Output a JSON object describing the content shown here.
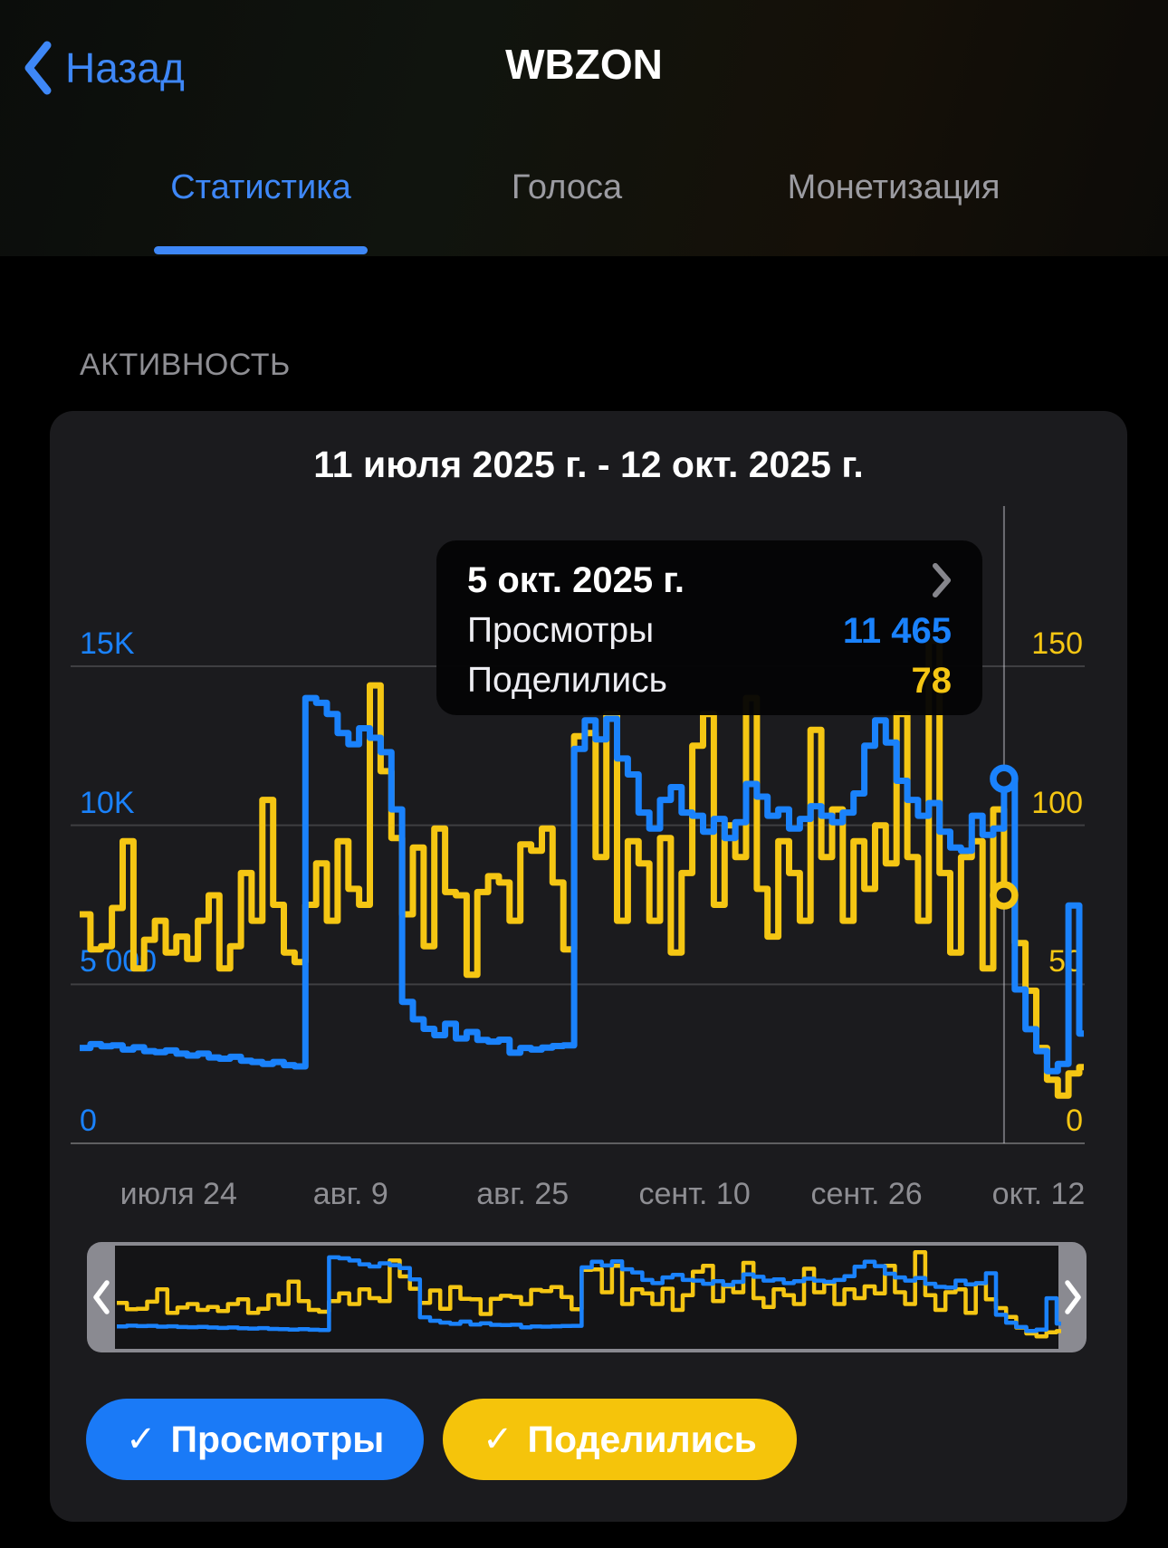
{
  "nav": {
    "back_label": "Назад",
    "title": "WBZON"
  },
  "tabs": [
    {
      "label": "Статистика",
      "active": true
    },
    {
      "label": "Голоса",
      "active": false
    },
    {
      "label": "Монетизация",
      "active": false
    }
  ],
  "section_title": "АКТИВНОСТЬ",
  "card": {
    "date_range_title": "11 июля 2025 г. - 12 окт. 2025 г."
  },
  "tooltip": {
    "date": "5 окт. 2025 г.",
    "views_label": "Просмотры",
    "views_value": "11 465",
    "shares_label": "Поделились",
    "shares_value": "78"
  },
  "legend": [
    {
      "check_icon": "✓",
      "label": "Просмотры",
      "color": "#1a7af7"
    },
    {
      "check_icon": "✓",
      "label": "Поделились",
      "color": "#f5c40b"
    }
  ],
  "colors": {
    "views_line": "#1a82fc",
    "shares_line": "#f5c613",
    "grid": "rgba(255,255,255,0.16)",
    "axis_base": "rgba(255,255,255,0.3)",
    "selection": "rgba(235,235,245,0.4)",
    "card_bg": "#1b1b1e"
  },
  "chart_data": {
    "type": "line",
    "step": true,
    "title": "11 июля 2025 г. - 12 окт. 2025 г.",
    "x_start": "11 июля 2025",
    "x_end": "12 окт. 2025",
    "x_ticks": [
      {
        "label": "июля 24",
        "day": 13
      },
      {
        "label": "авг. 9",
        "day": 29
      },
      {
        "label": "авг. 25",
        "day": 45
      },
      {
        "label": "сент. 10",
        "day": 61
      },
      {
        "label": "сент. 26",
        "day": 77
      },
      {
        "label": "окт. 12",
        "day": 93
      }
    ],
    "y_left": {
      "ticks": [
        "0",
        "5 000",
        "10K",
        "15K"
      ],
      "max": 15000
    },
    "y_right": {
      "ticks": [
        "0",
        "50",
        "100",
        "150"
      ],
      "max": 150
    },
    "selected": {
      "index": 86,
      "date": "5 окт. 2025 г.",
      "views": 11465,
      "shares": 78
    },
    "series": [
      {
        "name": "Просмотры",
        "axis": "left",
        "color": "#1a82fc",
        "values": [
          3000,
          3120,
          3050,
          3080,
          2950,
          3020,
          2900,
          2870,
          2920,
          2820,
          2760,
          2820,
          2700,
          2660,
          2720,
          2600,
          2560,
          2500,
          2560,
          2460,
          2420,
          14000,
          13850,
          13500,
          12900,
          12550,
          13050,
          12750,
          12300,
          10500,
          4450,
          3900,
          3600,
          3400,
          3760,
          3300,
          3500,
          3250,
          3200,
          3260,
          2850,
          3000,
          2950,
          3010,
          3060,
          3080,
          12400,
          13300,
          12700,
          13350,
          12100,
          11600,
          10400,
          9900,
          10800,
          11200,
          10400,
          10300,
          9800,
          10200,
          9600,
          10100,
          11300,
          10900,
          10300,
          10500,
          9900,
          10200,
          10600,
          10300,
          10100,
          10400,
          11000,
          12500,
          13300,
          12600,
          11400,
          10800,
          10300,
          10700,
          9800,
          9300,
          9200,
          10300,
          9700,
          9900,
          11465,
          4840,
          3590,
          2900,
          2270,
          2500,
          7480,
          3450
        ]
      },
      {
        "name": "Поделились",
        "axis": "right",
        "color": "#f5c613",
        "values": [
          72,
          61,
          62,
          74,
          95,
          55,
          64,
          70,
          60,
          65,
          58,
          70,
          78,
          55,
          62,
          85,
          70,
          108,
          75,
          60,
          57,
          75,
          88,
          70,
          95,
          80,
          75,
          144,
          117,
          96,
          72,
          93,
          62,
          99,
          79,
          78,
          53,
          79,
          84,
          82,
          70,
          94,
          92,
          99,
          82,
          61,
          128,
          129,
          90,
          135,
          70,
          95,
          88,
          70,
          96,
          60,
          85,
          125,
          135,
          75,
          100,
          90,
          140,
          80,
          65,
          95,
          85,
          70,
          130,
          90,
          105,
          70,
          95,
          80,
          100,
          88,
          135,
          90,
          70,
          158,
          85,
          60,
          90,
          95,
          55,
          105,
          78,
          63,
          48,
          30,
          20,
          15,
          22,
          24
        ]
      }
    ]
  }
}
